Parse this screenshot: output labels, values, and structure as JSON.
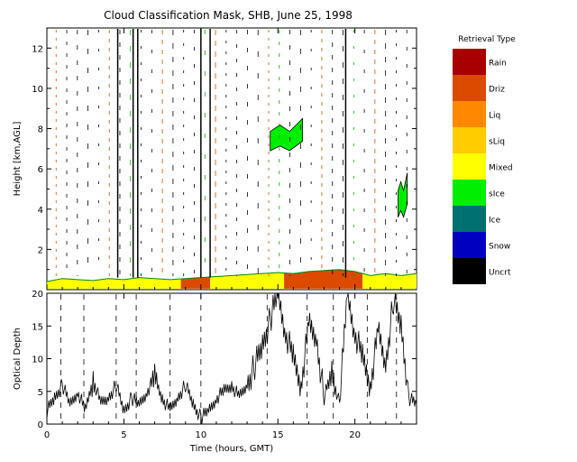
{
  "chart_data": [
    {
      "type": "heatmap",
      "title": "Cloud Classification Mask, SHB, June 25, 1998",
      "ylabel": "Height [km,AGL]",
      "xlim": [
        0,
        24
      ],
      "ylim": [
        0,
        13
      ],
      "yticks": [
        2,
        4,
        6,
        8,
        10,
        12
      ],
      "legend_title": "Retrieval Type",
      "legend_position": "right",
      "classes": [
        {
          "name": "Rain",
          "color": "#a80000"
        },
        {
          "name": "Driz",
          "color": "#dc4a00"
        },
        {
          "name": "Liq",
          "color": "#ff8800"
        },
        {
          "name": "sLiq",
          "color": "#ffcc00"
        },
        {
          "name": "Mixed",
          "color": "#ffff00"
        },
        {
          "name": "sIce",
          "color": "#00ee00"
        },
        {
          "name": "Ice",
          "color": "#007070"
        },
        {
          "name": "Snow",
          "color": "#0000c0"
        },
        {
          "name": "Uncrt",
          "color": "#000000"
        }
      ],
      "low_cloud_top": {
        "x": [
          0,
          1,
          2,
          3,
          4,
          5,
          6,
          7,
          8,
          9,
          10,
          11,
          12,
          13,
          14,
          15,
          16,
          17,
          18,
          19,
          20,
          21,
          22,
          23,
          24
        ],
        "top_km": [
          0.4,
          0.55,
          0.5,
          0.45,
          0.55,
          0.5,
          0.6,
          0.55,
          0.5,
          0.55,
          0.6,
          0.65,
          0.7,
          0.75,
          0.8,
          0.85,
          0.8,
          0.9,
          0.95,
          1.0,
          0.9,
          0.7,
          0.8,
          0.7,
          0.8
        ]
      },
      "layer_segments": [
        {
          "x0": 0.0,
          "x1": 8.7,
          "class": "Mixed"
        },
        {
          "x0": 8.7,
          "x1": 10.6,
          "class": "Driz"
        },
        {
          "x0": 10.6,
          "x1": 15.4,
          "class": "Mixed"
        },
        {
          "x0": 15.4,
          "x1": 20.5,
          "class": "Driz"
        },
        {
          "x0": 20.5,
          "x1": 24.0,
          "class": "Mixed"
        }
      ],
      "sice_patches": [
        {
          "x0": 14.5,
          "x1": 16.6,
          "y0": 6.9,
          "y1": 8.5
        },
        {
          "x0": 22.8,
          "x1": 23.4,
          "y0": 3.6,
          "y1": 5.8
        }
      ],
      "uncertain_columns": [
        4.6,
        5.6,
        5.9,
        10.0,
        10.6,
        19.4
      ]
    },
    {
      "type": "line",
      "xlabel": "Time (hours, GMT)",
      "ylabel": "Optical Depth",
      "xlim": [
        0,
        24
      ],
      "ylim": [
        0,
        20
      ],
      "xticks": [
        0,
        5,
        10,
        15,
        20
      ],
      "yticks": [
        0,
        5,
        10,
        15,
        20
      ],
      "x": [
        0,
        0.5,
        1,
        1.5,
        2,
        2.5,
        3,
        3.5,
        4,
        4.5,
        5,
        5.5,
        6,
        6.5,
        7,
        7.5,
        8,
        8.5,
        9,
        9.5,
        10,
        10.5,
        11,
        11.5,
        12,
        12.5,
        13,
        13.5,
        14,
        14.5,
        15,
        15.5,
        16,
        16.5,
        17,
        17.5,
        18,
        18.5,
        19,
        19.5,
        20,
        20.5,
        21,
        21.5,
        22,
        22.5,
        23,
        23.5,
        24
      ],
      "values": [
        2,
        4,
        6,
        3,
        5,
        2,
        7,
        3,
        4,
        6,
        2,
        4,
        3,
        5,
        7,
        4,
        2,
        4,
        6,
        3,
        1,
        2,
        4,
        5,
        6,
        4,
        6,
        9,
        12,
        16,
        20,
        14,
        10,
        6,
        15,
        13,
        4,
        8,
        3,
        20,
        14,
        10,
        6,
        14,
        9,
        19,
        15,
        4,
        3
      ]
    }
  ]
}
